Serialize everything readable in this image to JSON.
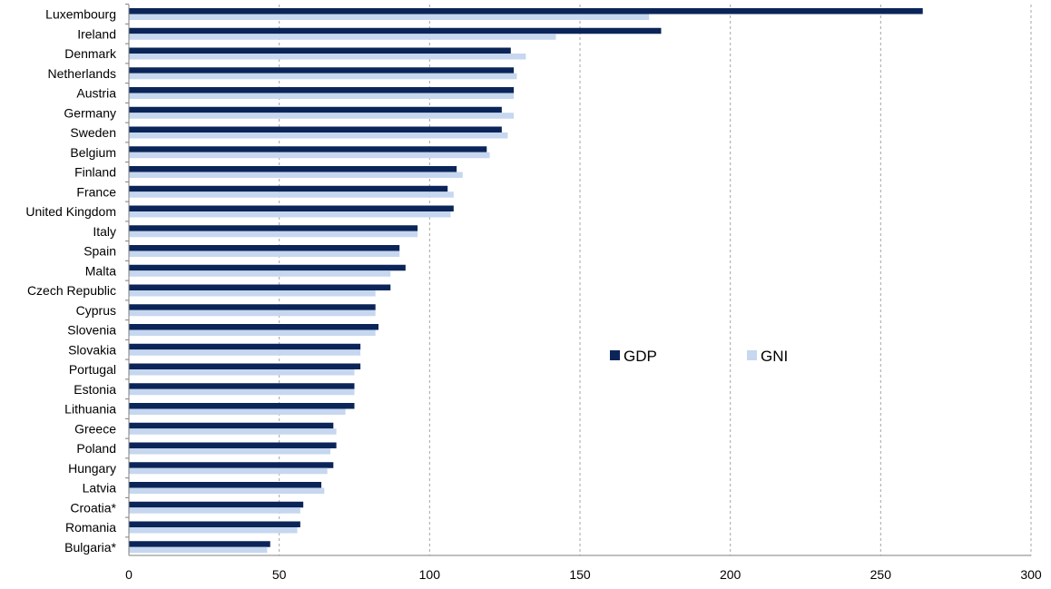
{
  "chart_data": {
    "type": "bar",
    "orientation": "horizontal",
    "categories": [
      "Luxembourg",
      "Ireland",
      "Denmark",
      "Netherlands",
      "Austria",
      "Germany",
      "Sweden",
      "Belgium",
      "Finland",
      "France",
      "United Kingdom",
      "Italy",
      "Spain",
      "Malta",
      "Czech Republic",
      "Cyprus",
      "Slovenia",
      "Slovakia",
      "Portugal",
      "Estonia",
      "Lithuania",
      "Greece",
      "Poland",
      "Hungary",
      "Latvia",
      "Croatia*",
      "Romania",
      "Bulgaria*"
    ],
    "series": [
      {
        "name": "GDP",
        "color": "#0b2559",
        "values": [
          264,
          177,
          127,
          128,
          128,
          124,
          124,
          119,
          109,
          106,
          108,
          96,
          90,
          92,
          87,
          82,
          83,
          77,
          77,
          75,
          75,
          68,
          69,
          68,
          64,
          58,
          57,
          47
        ]
      },
      {
        "name": "GNI",
        "color": "#c6d7ef",
        "values": [
          173,
          142,
          132,
          129,
          128,
          128,
          126,
          120,
          111,
          108,
          107,
          96,
          90,
          87,
          82,
          82,
          82,
          77,
          75,
          75,
          72,
          69,
          67,
          66,
          65,
          57,
          56,
          46
        ]
      }
    ],
    "xlim": [
      0,
      300
    ],
    "xticks": [
      "0",
      "50",
      "100",
      "150",
      "200",
      "250",
      "300"
    ],
    "grid": "vertical dashed",
    "legend_position": "right-middle",
    "title": "",
    "xlabel": "",
    "ylabel": ""
  }
}
